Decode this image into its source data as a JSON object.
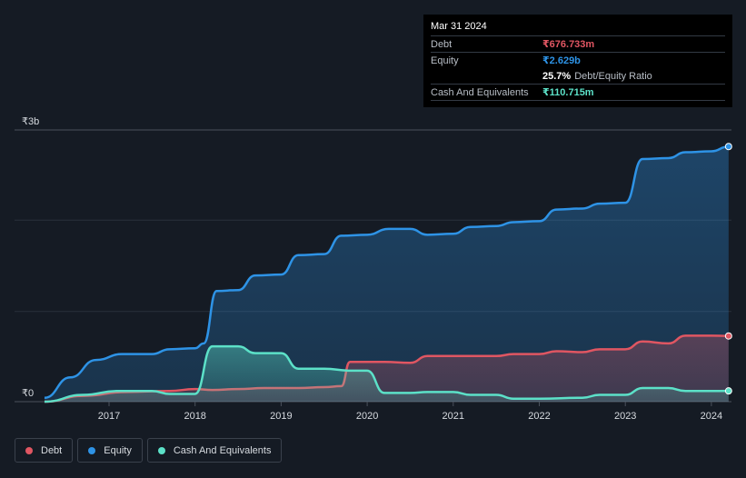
{
  "tooltip": {
    "date": "Mar 31 2024",
    "debt_label": "Debt",
    "debt_value": "₹676.733m",
    "equity_label": "Equity",
    "equity_value": "₹2.629b",
    "ratio_pct": "25.7%",
    "ratio_label": "Debt/Equity Ratio",
    "cash_label": "Cash And Equivalents",
    "cash_value": "₹110.715m"
  },
  "legend": [
    {
      "label": "Debt",
      "color": "#e05662"
    },
    {
      "label": "Equity",
      "color": "#2e93e6"
    },
    {
      "label": "Cash And Equivalents",
      "color": "#5ce1c8"
    }
  ],
  "colors": {
    "debt": "#e05662",
    "equity": "#2e93e6",
    "cash": "#5ce1c8",
    "background": "#151b24"
  },
  "chart_data": {
    "type": "area",
    "y_unit": "₹b",
    "ylim": [
      0,
      2.8
    ],
    "y_ticks": [
      {
        "value": 0,
        "label": "₹0"
      },
      {
        "value": 2.8,
        "label": "₹3b"
      }
    ],
    "x_ticks": [
      "2017",
      "2018",
      "2019",
      "2020",
      "2021",
      "2022",
      "2023",
      "2024"
    ],
    "grid": true,
    "series": [
      {
        "name": "Equity",
        "key": "equity",
        "points": [
          [
            2016.25,
            0.04
          ],
          [
            2016.55,
            0.25
          ],
          [
            2016.85,
            0.43
          ],
          [
            2017.15,
            0.49
          ],
          [
            2017.5,
            0.49
          ],
          [
            2017.7,
            0.54
          ],
          [
            2018.0,
            0.55
          ],
          [
            2018.1,
            0.6
          ],
          [
            2018.25,
            1.14
          ],
          [
            2018.5,
            1.15
          ],
          [
            2018.7,
            1.3
          ],
          [
            2019.0,
            1.31
          ],
          [
            2019.2,
            1.51
          ],
          [
            2019.5,
            1.52
          ],
          [
            2019.7,
            1.71
          ],
          [
            2020.0,
            1.72
          ],
          [
            2020.25,
            1.78
          ],
          [
            2020.5,
            1.78
          ],
          [
            2020.7,
            1.72
          ],
          [
            2021.0,
            1.73
          ],
          [
            2021.2,
            1.8
          ],
          [
            2021.5,
            1.81
          ],
          [
            2021.7,
            1.85
          ],
          [
            2022.0,
            1.86
          ],
          [
            2022.2,
            1.98
          ],
          [
            2022.5,
            1.99
          ],
          [
            2022.7,
            2.04
          ],
          [
            2023.0,
            2.05
          ],
          [
            2023.2,
            2.5
          ],
          [
            2023.5,
            2.51
          ],
          [
            2023.7,
            2.57
          ],
          [
            2024.0,
            2.58
          ],
          [
            2024.2,
            2.629
          ]
        ]
      },
      {
        "name": "Debt",
        "key": "debt",
        "points": [
          [
            2016.25,
            0.0
          ],
          [
            2016.7,
            0.06
          ],
          [
            2017.2,
            0.1
          ],
          [
            2017.7,
            0.11
          ],
          [
            2018.0,
            0.13
          ],
          [
            2018.2,
            0.12
          ],
          [
            2018.5,
            0.13
          ],
          [
            2018.8,
            0.14
          ],
          [
            2019.2,
            0.14
          ],
          [
            2019.5,
            0.15
          ],
          [
            2019.7,
            0.16
          ],
          [
            2019.8,
            0.41
          ],
          [
            2020.2,
            0.41
          ],
          [
            2020.5,
            0.4
          ],
          [
            2020.7,
            0.47
          ],
          [
            2021.0,
            0.47
          ],
          [
            2021.5,
            0.47
          ],
          [
            2021.7,
            0.49
          ],
          [
            2022.0,
            0.49
          ],
          [
            2022.2,
            0.52
          ],
          [
            2022.5,
            0.51
          ],
          [
            2022.7,
            0.54
          ],
          [
            2023.0,
            0.54
          ],
          [
            2023.2,
            0.62
          ],
          [
            2023.5,
            0.6
          ],
          [
            2023.7,
            0.68
          ],
          [
            2024.0,
            0.68
          ],
          [
            2024.2,
            0.677
          ]
        ]
      },
      {
        "name": "Cash And Equivalents",
        "key": "cash",
        "points": [
          [
            2016.25,
            0.0
          ],
          [
            2016.7,
            0.07
          ],
          [
            2017.1,
            0.11
          ],
          [
            2017.5,
            0.11
          ],
          [
            2017.7,
            0.08
          ],
          [
            2018.0,
            0.08
          ],
          [
            2018.2,
            0.57
          ],
          [
            2018.5,
            0.57
          ],
          [
            2018.7,
            0.5
          ],
          [
            2019.0,
            0.5
          ],
          [
            2019.2,
            0.34
          ],
          [
            2019.5,
            0.34
          ],
          [
            2019.8,
            0.32
          ],
          [
            2020.0,
            0.32
          ],
          [
            2020.2,
            0.09
          ],
          [
            2020.5,
            0.09
          ],
          [
            2020.7,
            0.1
          ],
          [
            2021.0,
            0.1
          ],
          [
            2021.2,
            0.07
          ],
          [
            2021.5,
            0.07
          ],
          [
            2021.7,
            0.03
          ],
          [
            2022.0,
            0.03
          ],
          [
            2022.5,
            0.04
          ],
          [
            2022.7,
            0.07
          ],
          [
            2023.0,
            0.07
          ],
          [
            2023.2,
            0.14
          ],
          [
            2023.5,
            0.14
          ],
          [
            2023.7,
            0.11
          ],
          [
            2024.0,
            0.11
          ],
          [
            2024.2,
            0.111
          ]
        ]
      }
    ]
  }
}
